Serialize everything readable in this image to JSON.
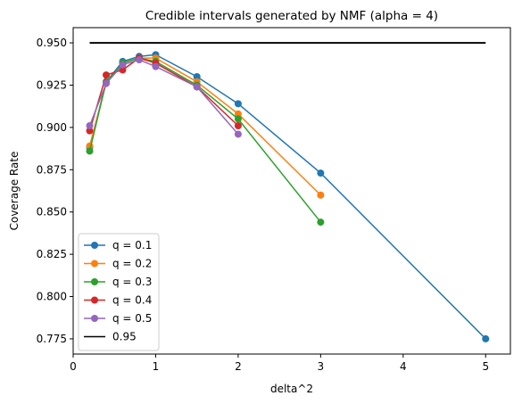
{
  "chart_data": {
    "type": "line",
    "title": "Credible intervals generated by NMF (alpha = 4)",
    "xlabel": "delta^2",
    "ylabel": "Coverage Rate",
    "xlim": [
      0,
      5.3
    ],
    "ylim": [
      0.766,
      0.959
    ],
    "xticks": [
      0,
      1,
      2,
      3,
      4,
      5
    ],
    "yticks": [
      0.775,
      0.8,
      0.825,
      0.85,
      0.875,
      0.9,
      0.925,
      0.95
    ],
    "ytick_labels": [
      "0.775",
      "0.800",
      "0.825",
      "0.850",
      "0.875",
      "0.900",
      "0.925",
      "0.950"
    ],
    "xtick_labels": [
      "0",
      "1",
      "2",
      "3",
      "4",
      "5"
    ],
    "grid": false,
    "legend_position": "lower-left",
    "series": [
      {
        "name": "q = 0.1",
        "color": "#1f77b4",
        "marker": "circle",
        "x": [
          0.2,
          0.4,
          0.6,
          0.8,
          1.0,
          1.5,
          2.0,
          3.0,
          5.0
        ],
        "y": [
          0.888,
          0.927,
          0.939,
          0.942,
          0.943,
          0.93,
          0.914,
          0.873,
          0.775
        ]
      },
      {
        "name": "q = 0.2",
        "color": "#ff7f0e",
        "marker": "circle",
        "x": [
          0.2,
          0.4,
          0.6,
          0.8,
          1.0,
          1.5,
          2.0,
          3.0
        ],
        "y": [
          0.889,
          0.926,
          0.938,
          0.941,
          0.941,
          0.927,
          0.908,
          0.86
        ]
      },
      {
        "name": "q = 0.3",
        "color": "#2ca02c",
        "marker": "circle",
        "x": [
          0.2,
          0.4,
          0.6,
          0.8,
          1.0,
          1.5,
          2.0,
          3.0
        ],
        "y": [
          0.886,
          0.927,
          0.938,
          0.941,
          0.939,
          0.925,
          0.905,
          0.844
        ]
      },
      {
        "name": "q = 0.4",
        "color": "#d62728",
        "marker": "circle",
        "x": [
          0.2,
          0.4,
          0.6,
          0.8,
          1.0,
          1.5,
          2.0
        ],
        "y": [
          0.898,
          0.931,
          0.934,
          0.941,
          0.938,
          0.924,
          0.901
        ]
      },
      {
        "name": "q = 0.5",
        "color": "#9467bd",
        "marker": "circle",
        "x": [
          0.2,
          0.4,
          0.6,
          0.8,
          1.0,
          1.5,
          2.0
        ],
        "y": [
          0.901,
          0.926,
          0.937,
          0.94,
          0.936,
          0.924,
          0.896
        ]
      }
    ],
    "reference_line": {
      "name": "0.95",
      "color": "#000000",
      "x": [
        0.2,
        5.0
      ],
      "y": [
        0.95,
        0.95
      ]
    }
  }
}
